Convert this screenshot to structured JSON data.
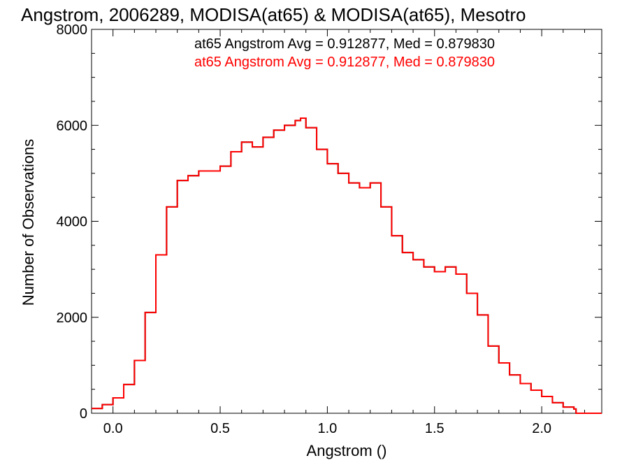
{
  "chart_data": {
    "type": "line",
    "step": true,
    "title": "Angstrom, 2006289, MODISA(at65) & MODISA(at65), Mesotro",
    "xlabel": "Angstrom ()",
    "ylabel": "Number of Observations",
    "xlim": [
      -0.1,
      2.28
    ],
    "ylim": [
      0,
      8000
    ],
    "xticks": [
      "0.0",
      "0.5",
      "1.0",
      "1.5",
      "2.0"
    ],
    "yticks": [
      "0",
      "2000",
      "4000",
      "6000",
      "8000"
    ],
    "grid": false,
    "legend_position": "top-right",
    "series": [
      {
        "name": "at65 Angstrom Avg = 0.912877, Med = 0.879830",
        "color": "#000000",
        "x": [
          -0.1,
          -0.05,
          0.0,
          0.05,
          0.1,
          0.15,
          0.2,
          0.25,
          0.3,
          0.35,
          0.4,
          0.45,
          0.5,
          0.55,
          0.6,
          0.65,
          0.7,
          0.75,
          0.8,
          0.85,
          0.875,
          0.9,
          0.95,
          1.0,
          1.05,
          1.1,
          1.15,
          1.2,
          1.25,
          1.3,
          1.35,
          1.4,
          1.45,
          1.5,
          1.55,
          1.6,
          1.65,
          1.7,
          1.75,
          1.8,
          1.85,
          1.9,
          1.95,
          2.0,
          2.05,
          2.1,
          2.15,
          2.16,
          2.2,
          2.28
        ],
        "values": [
          100,
          180,
          320,
          600,
          1100,
          2100,
          3300,
          4300,
          4850,
          4950,
          5050,
          5050,
          5150,
          5450,
          5650,
          5550,
          5750,
          5900,
          6000,
          6100,
          6150,
          5950,
          5500,
          5200,
          5000,
          4800,
          4700,
          4800,
          4300,
          3700,
          3350,
          3200,
          3050,
          2950,
          3050,
          2900,
          2500,
          2050,
          1400,
          1050,
          800,
          620,
          480,
          350,
          220,
          130,
          90,
          0,
          0,
          0
        ]
      },
      {
        "name": "at65 Angstrom Avg = 0.912877, Med = 0.879830",
        "color": "#ff0000",
        "x": [
          -0.1,
          -0.05,
          0.0,
          0.05,
          0.1,
          0.15,
          0.2,
          0.25,
          0.3,
          0.35,
          0.4,
          0.45,
          0.5,
          0.55,
          0.6,
          0.65,
          0.7,
          0.75,
          0.8,
          0.85,
          0.875,
          0.9,
          0.95,
          1.0,
          1.05,
          1.1,
          1.15,
          1.2,
          1.25,
          1.3,
          1.35,
          1.4,
          1.45,
          1.5,
          1.55,
          1.6,
          1.65,
          1.7,
          1.75,
          1.8,
          1.85,
          1.9,
          1.95,
          2.0,
          2.05,
          2.1,
          2.15,
          2.16,
          2.2,
          2.28
        ],
        "values": [
          100,
          180,
          320,
          600,
          1100,
          2100,
          3300,
          4300,
          4850,
          4950,
          5050,
          5050,
          5150,
          5450,
          5650,
          5550,
          5750,
          5900,
          6000,
          6100,
          6150,
          5950,
          5500,
          5200,
          5000,
          4800,
          4700,
          4800,
          4300,
          3700,
          3350,
          3200,
          3050,
          2950,
          3050,
          2900,
          2500,
          2050,
          1400,
          1050,
          800,
          620,
          480,
          350,
          220,
          130,
          90,
          0,
          0,
          0
        ]
      }
    ]
  }
}
